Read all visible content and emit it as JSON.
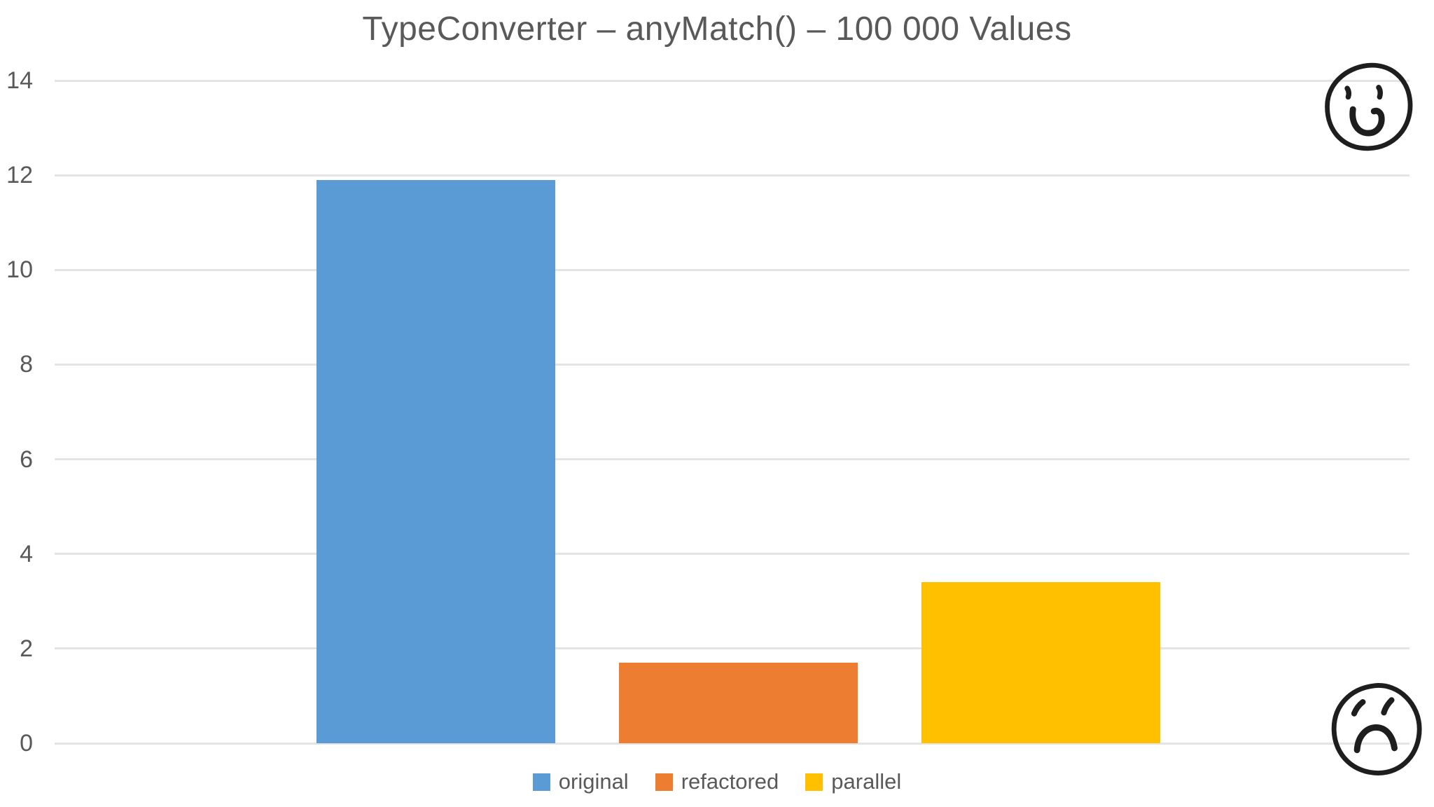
{
  "title": "TypeConverter – anyMatch() – 100 000 Values",
  "chart_data": {
    "type": "bar",
    "title": "TypeConverter – anyMatch() – 100 000 Values",
    "categories": [
      ""
    ],
    "series": [
      {
        "name": "original",
        "values": [
          11.9
        ],
        "color": "#5B9BD5"
      },
      {
        "name": "refactored",
        "values": [
          1.7
        ],
        "color": "#ED7D31"
      },
      {
        "name": "parallel",
        "values": [
          3.4
        ],
        "color": "#FFC000"
      }
    ],
    "xlabel": "",
    "ylabel": "",
    "ylim": [
      0,
      14
    ],
    "yticks": [
      0,
      2,
      4,
      6,
      8,
      10,
      12,
      14
    ],
    "grid": true,
    "legend_position": "bottom",
    "legend": [
      "original",
      "refactored",
      "parallel"
    ]
  },
  "annotations": {
    "happy_face": "hand-drawn smiley face (top right)",
    "sad_face": "hand-drawn frowning face (bottom right)"
  },
  "colors": {
    "title_text": "#595959",
    "tick_text": "#595959",
    "legend_text": "#595959",
    "gridline": "#e4e4e4",
    "background": "#ffffff",
    "face_ink": "#1e1e1e"
  }
}
